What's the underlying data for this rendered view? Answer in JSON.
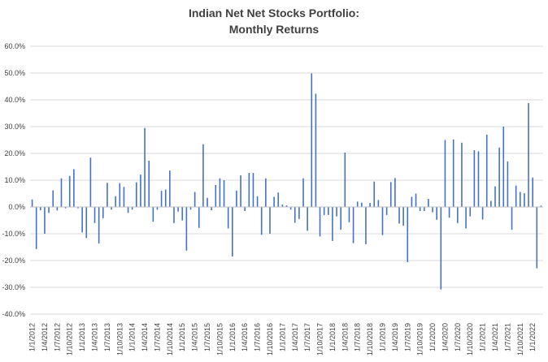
{
  "chart_data": {
    "type": "bar",
    "title_line1": "Indian Net Net Stocks Portfolio:",
    "title_line2": "Monthly Returns",
    "xlabel": "",
    "ylabel": "",
    "ylim": [
      -40,
      60
    ],
    "yticks": [
      60,
      50,
      40,
      30,
      20,
      10,
      0,
      -10,
      -20,
      -30,
      -40
    ],
    "ytick_labels": [
      "60.0%",
      "50.0%",
      "40.0%",
      "30.0%",
      "20.0%",
      "10.0%",
      "0.0%",
      "-10.0%",
      "-20.0%",
      "-30.0%",
      "-40.0%"
    ],
    "xtick_labels": [
      "1/1/2012",
      "1/4/2012",
      "1/7/2012",
      "1/10/2012",
      "1/1/2013",
      "1/4/2013",
      "1/7/2013",
      "1/10/2013",
      "1/1/2014",
      "1/4/2014",
      "1/7/2014",
      "1/10/2014",
      "1/1/2015",
      "1/4/2015",
      "1/7/2015",
      "1/10/2015",
      "1/1/2016",
      "1/4/2016",
      "1/7/2016",
      "1/10/2016",
      "1/1/2017",
      "1/4/2017",
      "1/7/2017",
      "1/10/2017",
      "1/1/2018",
      "1/4/2018",
      "1/7/2018",
      "1/10/2018",
      "1/1/2019",
      "1/4/2019",
      "1/7/2019",
      "1/10/2019",
      "1/1/2020",
      "1/4/2020",
      "1/7/2020",
      "1/10/2020",
      "1/1/2021",
      "1/4/2021",
      "1/7/2021",
      "1/10/2021",
      "1/1/2022"
    ],
    "bar_color": "#4472c4",
    "series": [
      {
        "name": "Monthly Return",
        "values": [
          2.8,
          -15.7,
          -1.2,
          -10.0,
          -2.2,
          6.2,
          -1.3,
          10.7,
          -0.5,
          11.6,
          14.1,
          -0.5,
          -9.5,
          -11.6,
          18.4,
          -6.0,
          -13.6,
          -4.2,
          9.0,
          -1.0,
          4.0,
          8.9,
          7.5,
          -2.2,
          -1.0,
          9.2,
          12.1,
          29.5,
          17.3,
          -5.5,
          -1.0,
          6.0,
          6.5,
          13.6,
          -6.0,
          -1.7,
          -5.0,
          -16.3,
          -1.0,
          5.6,
          -7.8,
          23.4,
          3.4,
          -1.2,
          8.2,
          10.7,
          10.0,
          -8.0,
          -18.5,
          6.1,
          11.8,
          -1.5,
          12.7,
          12.7,
          4.0,
          -10.4,
          10.7,
          -10.0,
          3.8,
          5.4,
          0.9,
          0.6,
          -1.0,
          -5.9,
          -4.5,
          10.7,
          -8.9,
          49.9,
          42.3,
          -11.0,
          -3.0,
          -3.0,
          -12.7,
          -3.5,
          -8.5,
          20.3,
          -5.7,
          -13.5,
          2.0,
          1.6,
          -13.9,
          1.5,
          9.5,
          2.6,
          -10.5,
          -3.0,
          9.3,
          10.8,
          -6.2,
          -7.0,
          -20.6,
          3.8,
          5.0,
          -1.5,
          -1.5,
          3.0,
          -2.0,
          -4.8,
          -30.8,
          25.0,
          -4.0,
          25.2,
          -6.0,
          24.0,
          -8.0,
          -3.5,
          21.2,
          20.8,
          -4.7,
          27.0,
          2.3,
          7.7,
          22.2,
          30.0,
          17.0,
          -8.5,
          8.0,
          5.6,
          5.1,
          38.8,
          11.0,
          -22.9,
          0.5
        ]
      }
    ]
  }
}
